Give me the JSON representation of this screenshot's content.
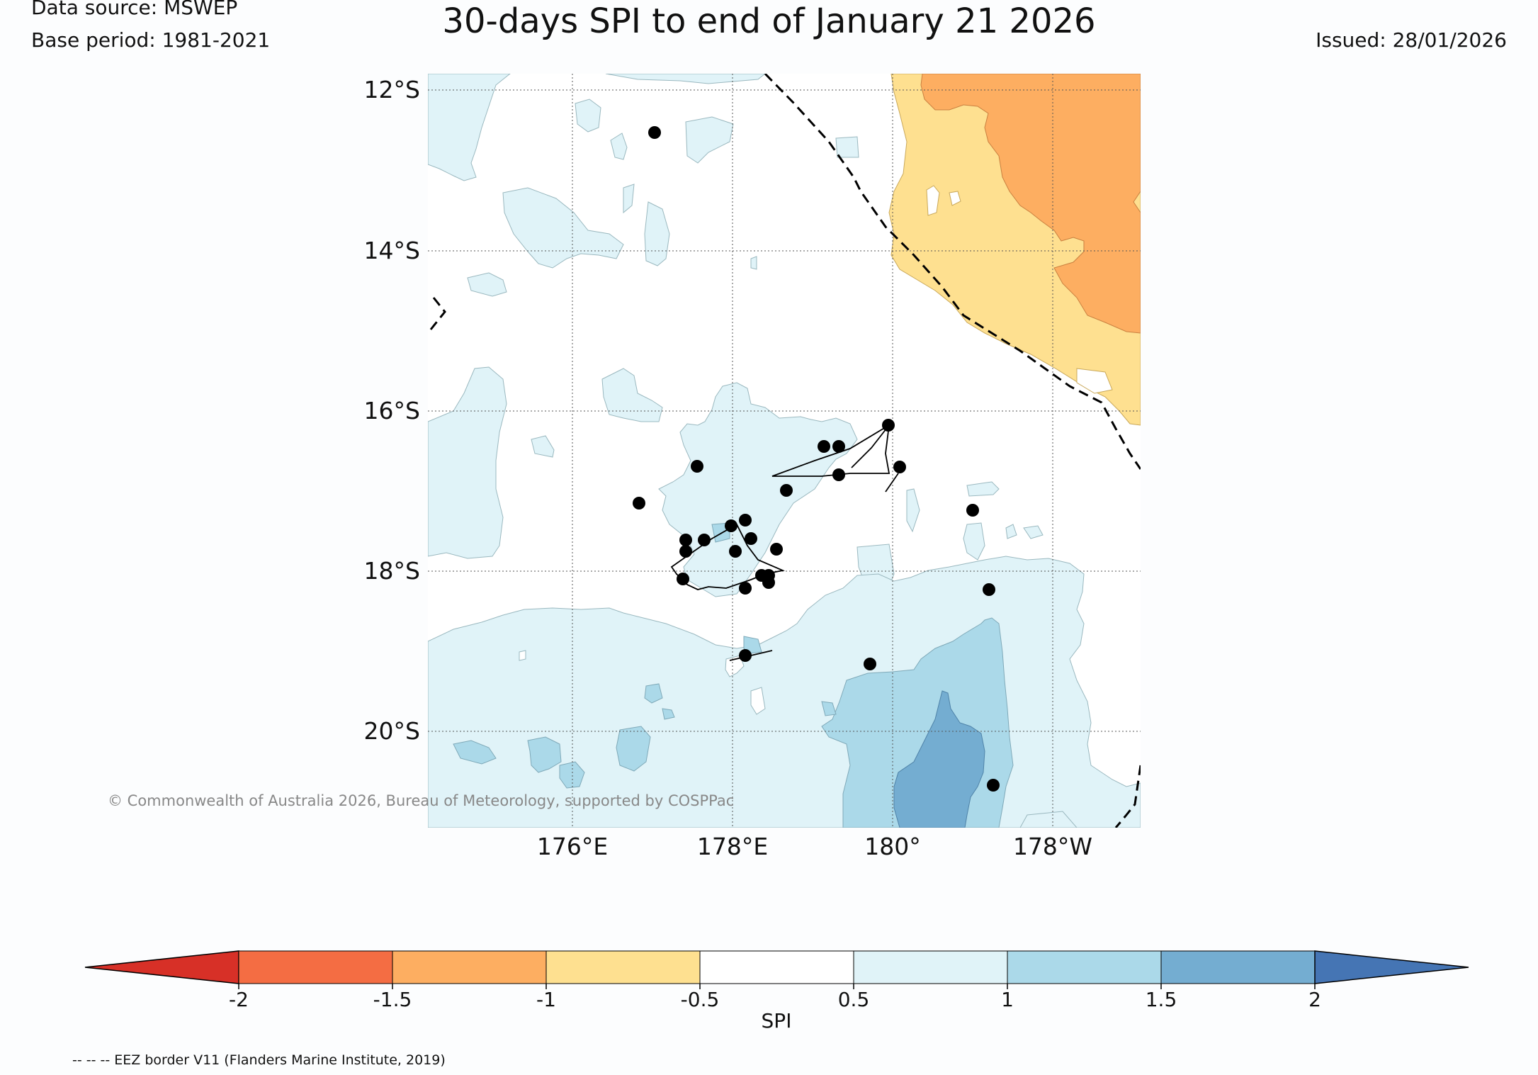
{
  "header": {
    "data_source": "Data source: MSWEP",
    "base_period": "Base period: 1981-2021",
    "title": "30-days SPI to end of January 21 2026",
    "issued": "Issued: 28/01/2026"
  },
  "map": {
    "lat_labels": [
      "12°S",
      "14°S",
      "16°S",
      "18°S",
      "20°S"
    ],
    "lon_labels": [
      "176°E",
      "178°E",
      "180°",
      "178°W"
    ],
    "copyright": "© Commonwealth of Australia 2026, Bureau of Meteorology, supported by COSPPac",
    "eez_note": "-- -- -- EEZ border V11 (Flanders Marine Institute, 2019)"
  },
  "colorbar": {
    "label": "SPI",
    "ticks": [
      "-2",
      "-1.5",
      "-1",
      "-0.5",
      "0.5",
      "1",
      "1.5",
      "2"
    ],
    "colors": [
      "#d73027",
      "#f46d43",
      "#fdae61",
      "#fee090",
      "#ffffff",
      "#e0f3f8",
      "#abd9e9",
      "#74add1",
      "#4575b4"
    ]
  },
  "legend_colors": {
    "very_dry": "#fdae61",
    "dry": "#fee090",
    "wet": "#e0f3f8",
    "wetter": "#abd9e9",
    "very_wet": "#74add1"
  }
}
